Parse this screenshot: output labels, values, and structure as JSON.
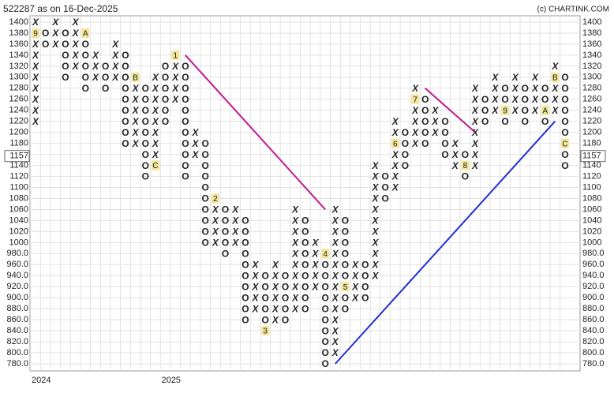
{
  "chart_data": {
    "type": "point-and-figure",
    "title": "522287 as on 16-Dec-2025",
    "source": "(c) CHARTINK.COM",
    "x_color": "#2e7d32",
    "o_color": "#e53935",
    "marker_color": "#f3e59a",
    "ylim": [
      780,
      1400
    ],
    "yticks": [
      1400,
      1380,
      1360,
      1340,
      1320,
      1300,
      1280,
      1260,
      1240,
      1220,
      1200,
      1180,
      1160,
      1140,
      1120,
      1100,
      1080,
      1060,
      1040,
      1020,
      1000,
      {
        "value": 980,
        "label": "980.0"
      },
      {
        "value": 960,
        "label": "960.0"
      },
      {
        "value": 940,
        "label": "940.0"
      },
      {
        "value": 920,
        "label": "920.0"
      },
      {
        "value": 900,
        "label": "900.0"
      },
      {
        "value": 880,
        "label": "880.0"
      },
      {
        "value": 860,
        "label": "860.0"
      },
      {
        "value": 840,
        "label": "840.0"
      },
      {
        "value": 820,
        "label": "820.0"
      },
      {
        "value": 800,
        "label": "800.0"
      },
      {
        "value": 780,
        "label": "780.0"
      }
    ],
    "grid": true,
    "last_price": 1157,
    "columns": [
      {
        "type": "X",
        "low": 1220,
        "high": 1400
      },
      {
        "type": "O",
        "low": 1360,
        "high": 1380
      },
      {
        "type": "X",
        "low": 1360,
        "high": 1400
      },
      {
        "type": "O",
        "low": 1300,
        "high": 1380
      },
      {
        "type": "X",
        "low": 1320,
        "high": 1400
      },
      {
        "type": "O",
        "low": 1280,
        "high": 1380
      },
      {
        "type": "X",
        "low": 1300,
        "high": 1340
      },
      {
        "type": "O",
        "low": 1280,
        "high": 1320
      },
      {
        "type": "X",
        "low": 1300,
        "high": 1360
      },
      {
        "type": "O",
        "low": 1180,
        "high": 1340
      },
      {
        "type": "X",
        "low": 1180,
        "high": 1300
      },
      {
        "type": "O",
        "low": 1120,
        "high": 1280
      },
      {
        "type": "X",
        "low": 1140,
        "high": 1300
      },
      {
        "type": "O",
        "low": 1220,
        "high": 1320
      },
      {
        "type": "X",
        "low": 1260,
        "high": 1340
      },
      {
        "type": "O",
        "low": 1120,
        "high": 1320
      },
      {
        "type": "X",
        "low": 1160,
        "high": 1200
      },
      {
        "type": "O",
        "low": 1000,
        "high": 1180
      },
      {
        "type": "X",
        "low": 1000,
        "high": 1080
      },
      {
        "type": "O",
        "low": 980,
        "high": 1060
      },
      {
        "type": "X",
        "low": 1000,
        "high": 1060
      },
      {
        "type": "O",
        "low": 860,
        "high": 1040
      },
      {
        "type": "X",
        "low": 880,
        "high": 960
      },
      {
        "type": "O",
        "low": 840,
        "high": 940
      },
      {
        "type": "X",
        "low": 860,
        "high": 960
      },
      {
        "type": "O",
        "low": 860,
        "high": 940
      },
      {
        "type": "X",
        "low": 880,
        "high": 1060
      },
      {
        "type": "O",
        "low": 880,
        "high": 1040
      },
      {
        "type": "X",
        "low": 920,
        "high": 1000
      },
      {
        "type": "O",
        "low": 780,
        "high": 980
      },
      {
        "type": "X",
        "low": 800,
        "high": 1060
      },
      {
        "type": "O",
        "low": 880,
        "high": 1040
      },
      {
        "type": "X",
        "low": 900,
        "high": 960
      },
      {
        "type": "O",
        "low": 900,
        "high": 960
      },
      {
        "type": "X",
        "low": 940,
        "high": 1140
      },
      {
        "type": "O",
        "low": 1080,
        "high": 1120
      },
      {
        "type": "X",
        "low": 1100,
        "high": 1220
      },
      {
        "type": "O",
        "low": 1140,
        "high": 1200
      },
      {
        "type": "X",
        "low": 1180,
        "high": 1280
      },
      {
        "type": "O",
        "low": 1180,
        "high": 1260
      },
      {
        "type": "X",
        "low": 1200,
        "high": 1240
      },
      {
        "type": "O",
        "low": 1160,
        "high": 1220
      },
      {
        "type": "X",
        "low": 1140,
        "high": 1180
      },
      {
        "type": "O",
        "low": 1120,
        "high": 1160
      },
      {
        "type": "X",
        "low": 1140,
        "high": 1280
      },
      {
        "type": "O",
        "low": 1220,
        "high": 1260
      },
      {
        "type": "X",
        "low": 1240,
        "high": 1300
      },
      {
        "type": "O",
        "low": 1220,
        "high": 1280
      },
      {
        "type": "X",
        "low": 1240,
        "high": 1300
      },
      {
        "type": "O",
        "low": 1220,
        "high": 1280
      },
      {
        "type": "X",
        "low": 1240,
        "high": 1300
      },
      {
        "type": "O",
        "low": 1220,
        "high": 1280
      },
      {
        "type": "X",
        "low": 1240,
        "high": 1320
      },
      {
        "type": "O",
        "low": 1140,
        "high": 1300
      }
    ],
    "markers": [
      {
        "col": 0,
        "price": 1380,
        "label": "9"
      },
      {
        "col": 5,
        "price": 1380,
        "label": "A"
      },
      {
        "col": 10,
        "price": 1300,
        "label": "B"
      },
      {
        "col": 12,
        "price": 1140,
        "label": "C"
      },
      {
        "col": 14,
        "price": 1340,
        "label": "1"
      },
      {
        "col": 18,
        "price": 1080,
        "label": "2"
      },
      {
        "col": 23,
        "price": 840,
        "label": "3"
      },
      {
        "col": 29,
        "price": 980,
        "label": "4"
      },
      {
        "col": 31,
        "price": 920,
        "label": "5"
      },
      {
        "col": 36,
        "price": 1180,
        "label": "6"
      },
      {
        "col": 38,
        "price": 1260,
        "label": "7"
      },
      {
        "col": 43,
        "price": 1140,
        "label": "8"
      },
      {
        "col": 47,
        "price": 1240,
        "label": "9"
      },
      {
        "col": 51,
        "price": 1240,
        "label": "A"
      },
      {
        "col": 52,
        "price": 1300,
        "label": "B"
      },
      {
        "col": 53,
        "price": 1180,
        "label": "C"
      }
    ],
    "trendlines": [
      {
        "from_col": 15,
        "from_price": 1340,
        "to_col": 29,
        "to_price": 1060,
        "color": "#c2188f"
      },
      {
        "from_col": 39,
        "from_price": 1280,
        "to_col": 44,
        "to_price": 1200,
        "color": "#c2188f"
      },
      {
        "from_col": 30,
        "from_price": 780,
        "to_col": 52,
        "to_price": 1220,
        "color": "#1f2fd6"
      }
    ],
    "x_labels": [
      {
        "col": 0,
        "label": "2024"
      },
      {
        "col": 13,
        "label": "2025"
      }
    ]
  }
}
